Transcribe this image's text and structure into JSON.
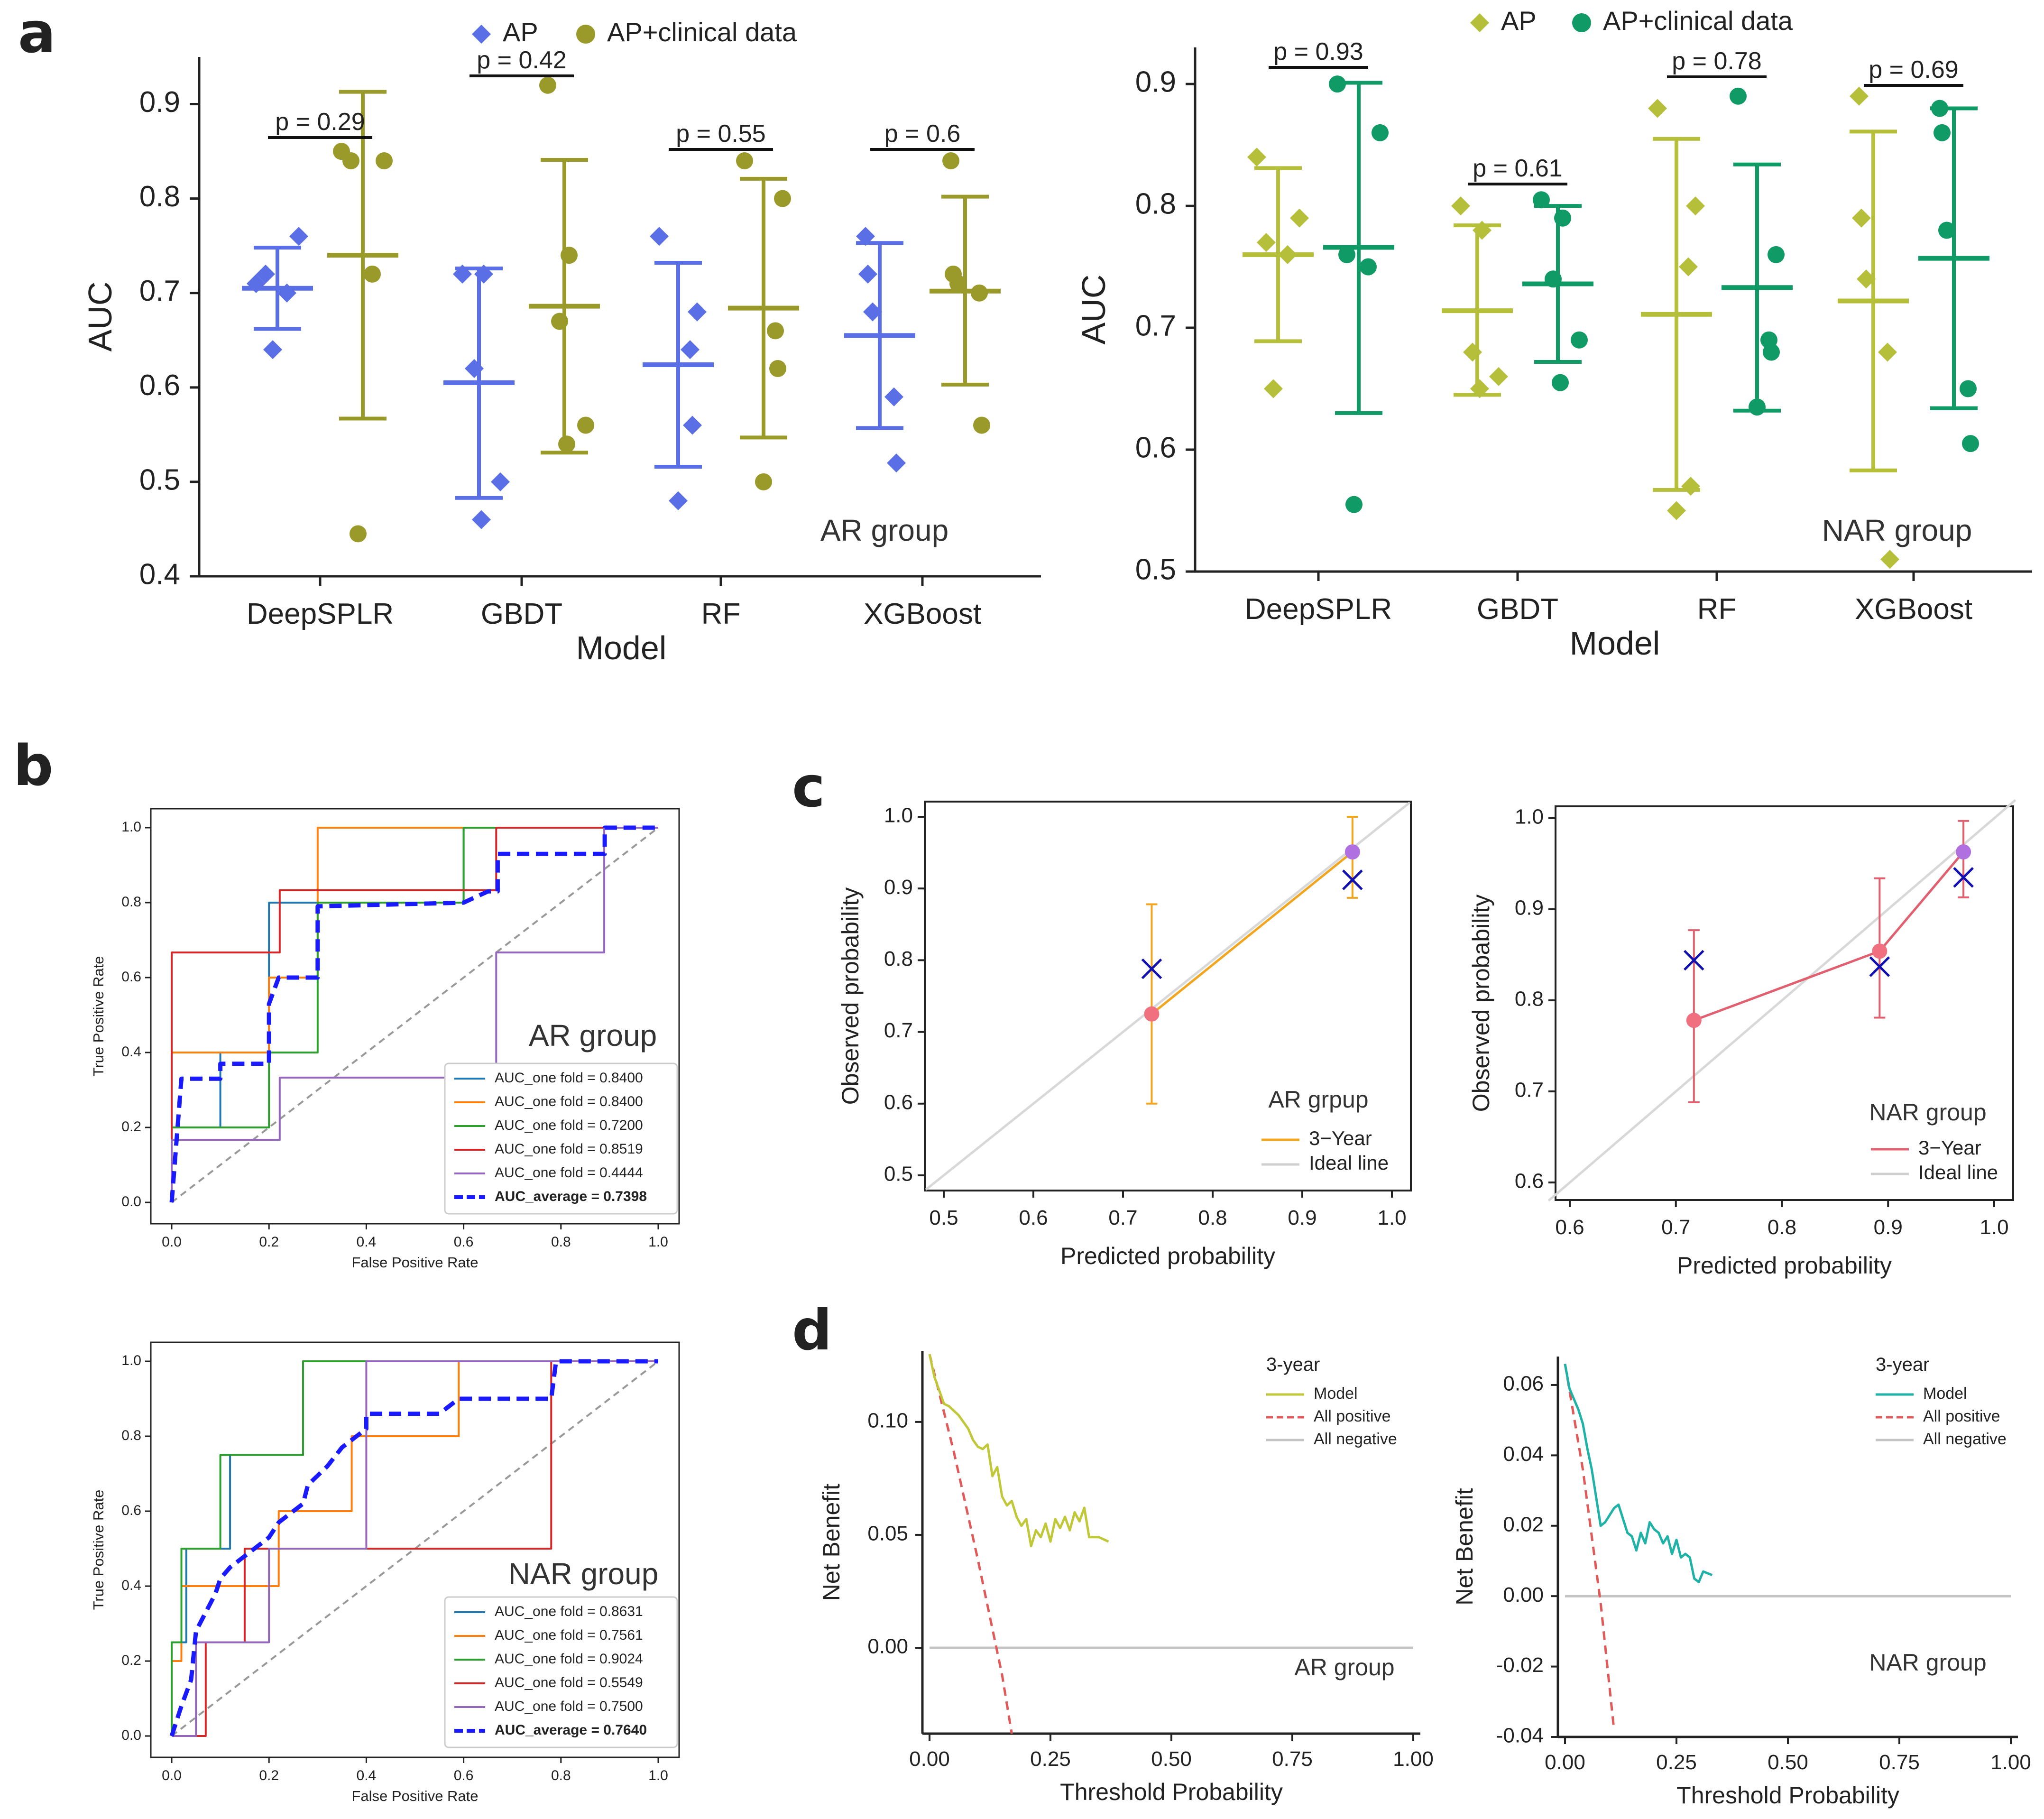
{
  "panel_letters": {
    "a": "a",
    "b": "b",
    "c": "c",
    "d": "d"
  },
  "colors": {
    "ap_ar": "#5a6ee6",
    "apclin_ar": "#9a9a2a",
    "ap_nar": "#b5bf3a",
    "apclin_nar": "#0f9a66",
    "fold1": "#1f77b4",
    "fold2": "#ff7f0e",
    "fold3": "#2ca02c",
    "fold4": "#d62728",
    "fold5": "#9467bd",
    "avg": "#1a1aff",
    "cal_ar_line": "#f2a51f",
    "cal_nar_line": "#e06070",
    "dca_ar_model": "#c0c83a",
    "dca_nar_model": "#20b2a6"
  },
  "chart_data": [
    {
      "id": "a_ar",
      "type": "scatter",
      "xlabel": "Model",
      "ylabel": "AUC",
      "annotation": "AR group",
      "categories": [
        "DeepSPLR",
        "GBDT",
        "RF",
        "XGBoost"
      ],
      "ylim": [
        0.4,
        0.95
      ],
      "yticks": [
        "0.4",
        "0.5",
        "0.6",
        "0.7",
        "0.8",
        "0.9"
      ],
      "legend": [
        "AP",
        "AP+clinical data"
      ],
      "pvalues": [
        "p = 0.29",
        "p = 0.42",
        "p = 0.55",
        "p = 0.6"
      ],
      "series": [
        {
          "name": "AP",
          "marker": "diamond",
          "points": [
            [
              0.71,
              0.76,
              0.72,
              0.7,
              0.64
            ],
            [
              0.72,
              0.72,
              0.62,
              0.5,
              0.46
            ],
            [
              0.76,
              0.68,
              0.64,
              0.56,
              0.48
            ],
            [
              0.76,
              0.72,
              0.68,
              0.59,
              0.52
            ]
          ],
          "mean": [
            0.705,
            0.605,
            0.624,
            0.655
          ],
          "err_low": [
            0.662,
            0.483,
            0.516,
            0.557
          ],
          "err_high": [
            0.748,
            0.726,
            0.732,
            0.753
          ]
        },
        {
          "name": "AP+clinical data",
          "marker": "circle",
          "points": [
            [
              0.85,
              0.84,
              0.84,
              0.72,
              0.445
            ],
            [
              0.92,
              0.74,
              0.67,
              0.56,
              0.54
            ],
            [
              0.84,
              0.8,
              0.66,
              0.62,
              0.5
            ],
            [
              0.84,
              0.72,
              0.71,
              0.7,
              0.56
            ]
          ],
          "mean": [
            0.74,
            0.686,
            0.684,
            0.702
          ],
          "err_low": [
            0.567,
            0.531,
            0.547,
            0.603
          ],
          "err_high": [
            0.913,
            0.841,
            0.821,
            0.802
          ]
        }
      ]
    },
    {
      "id": "a_nar",
      "type": "scatter",
      "xlabel": "Model",
      "ylabel": "AUC",
      "annotation": "NAR group",
      "categories": [
        "DeepSPLR",
        "GBDT",
        "RF",
        "XGBoost"
      ],
      "ylim": [
        0.5,
        0.93
      ],
      "yticks": [
        "0.5",
        "0.6",
        "0.7",
        "0.8",
        "0.9"
      ],
      "legend": [
        "AP",
        "AP+clinical data"
      ],
      "pvalues": [
        "p = 0.93",
        "p = 0.61",
        "p = 0.78",
        "p = 0.69"
      ],
      "series": [
        {
          "name": "AP",
          "marker": "diamond",
          "points": [
            [
              0.84,
              0.79,
              0.77,
              0.76,
              0.65
            ],
            [
              0.8,
              0.78,
              0.68,
              0.66,
              0.65
            ],
            [
              0.88,
              0.8,
              0.75,
              0.57,
              0.55
            ],
            [
              0.89,
              0.79,
              0.74,
              0.68,
              0.51
            ]
          ],
          "mean": [
            0.76,
            0.714,
            0.711,
            0.722
          ],
          "err_low": [
            0.689,
            0.645,
            0.567,
            0.583
          ],
          "err_high": [
            0.831,
            0.784,
            0.855,
            0.861
          ]
        },
        {
          "name": "AP+clinical data",
          "marker": "circle",
          "points": [
            [
              0.9,
              0.86,
              0.76,
              0.75,
              0.555
            ],
            [
              0.805,
              0.79,
              0.74,
              0.69,
              0.655
            ],
            [
              0.89,
              0.76,
              0.69,
              0.68,
              0.635
            ],
            [
              0.88,
              0.86,
              0.78,
              0.65,
              0.605
            ]
          ],
          "mean": [
            0.766,
            0.736,
            0.733,
            0.757
          ],
          "err_low": [
            0.63,
            0.672,
            0.632,
            0.634
          ],
          "err_high": [
            0.901,
            0.8,
            0.834,
            0.88
          ]
        }
      ]
    },
    {
      "id": "b_ar",
      "type": "line",
      "xlabel": "False Positive Rate",
      "ylabel": "True Positive Rate",
      "annotation": "AR group",
      "xticks": [
        "0.0",
        "0.2",
        "0.4",
        "0.6",
        "0.8",
        "1.0"
      ],
      "yticks": [
        "0.0",
        "0.2",
        "0.4",
        "0.6",
        "0.8",
        "1.0"
      ],
      "legend_placement": "bottom-right",
      "series": [
        {
          "name": "AUC_one fold = 0.8400",
          "x": [
            0,
            0,
            0.1,
            0.1,
            0.2,
            0.2,
            0.3,
            0.3,
            0.6,
            0.6,
            1
          ],
          "y": [
            0,
            0.2,
            0.2,
            0.4,
            0.4,
            0.8,
            0.8,
            0.8,
            0.8,
            1,
            1
          ]
        },
        {
          "name": "AUC_one fold = 0.8400",
          "x": [
            0,
            0,
            0.2,
            0.2,
            0.3,
            0.3,
            1
          ],
          "y": [
            0,
            0.4,
            0.4,
            0.6,
            0.6,
            1,
            1
          ]
        },
        {
          "name": "AUC_one fold = 0.7200",
          "x": [
            0,
            0,
            0.2,
            0.2,
            0.3,
            0.3,
            0.6,
            0.6,
            1
          ],
          "y": [
            0,
            0.2,
            0.2,
            0.4,
            0.4,
            0.8,
            0.8,
            1,
            1
          ]
        },
        {
          "name": "AUC_one fold = 0.8519",
          "x": [
            0,
            0,
            0.222,
            0.222,
            0.667,
            0.667,
            0.889,
            0.889,
            1
          ],
          "y": [
            0,
            0.667,
            0.667,
            0.833,
            0.833,
            1,
            1,
            1,
            1
          ]
        },
        {
          "name": "AUC_one fold = 0.4444",
          "x": [
            0,
            0,
            0.222,
            0.222,
            0.667,
            0.667,
            0.889,
            0.889,
            1
          ],
          "y": [
            0,
            0.167,
            0.167,
            0.333,
            0.333,
            0.667,
            0.667,
            1,
            1
          ]
        },
        {
          "name": "AUC_average = 0.7398",
          "x": [
            0,
            0.02,
            0.05,
            0.1,
            0.1,
            0.2,
            0.2,
            0.22,
            0.3,
            0.3,
            0.6,
            0.65,
            0.67,
            0.67,
            0.89,
            0.89,
            1
          ],
          "y": [
            0,
            0.33,
            0.33,
            0.33,
            0.37,
            0.37,
            0.53,
            0.6,
            0.6,
            0.79,
            0.8,
            0.83,
            0.83,
            0.93,
            0.93,
            1,
            1
          ]
        }
      ]
    },
    {
      "id": "b_nar",
      "type": "line",
      "xlabel": "False Positive Rate",
      "ylabel": "True Positive Rate",
      "annotation": "NAR group",
      "xticks": [
        "0.0",
        "0.2",
        "0.4",
        "0.6",
        "0.8",
        "1.0"
      ],
      "yticks": [
        "0.0",
        "0.2",
        "0.4",
        "0.6",
        "0.8",
        "1.0"
      ],
      "legend_placement": "bottom-right",
      "series": [
        {
          "name": "AUC_one fold = 0.8631",
          "x": [
            0,
            0,
            0.03,
            0.03,
            0.07,
            0.07,
            0.12,
            0.12,
            0.27,
            0.27,
            1
          ],
          "y": [
            0,
            0.25,
            0.25,
            0.5,
            0.5,
            0.5,
            0.5,
            0.75,
            0.75,
            1,
            1
          ]
        },
        {
          "name": "AUC_one fold = 0.7561",
          "x": [
            0,
            0,
            0.02,
            0.02,
            0.1,
            0.1,
            0.22,
            0.22,
            0.37,
            0.37,
            0.4,
            0.4,
            0.59,
            0.59,
            1
          ],
          "y": [
            0,
            0.2,
            0.2,
            0.4,
            0.4,
            0.4,
            0.4,
            0.6,
            0.6,
            0.8,
            0.8,
            0.8,
            0.8,
            1,
            1
          ]
        },
        {
          "name": "AUC_one fold = 0.9024",
          "x": [
            0,
            0,
            0.02,
            0.02,
            0.1,
            0.1,
            0.27,
            0.27,
            0.32,
            0.32,
            1
          ],
          "y": [
            0,
            0.25,
            0.25,
            0.5,
            0.5,
            0.75,
            0.75,
            1,
            1,
            1,
            1
          ]
        },
        {
          "name": "AUC_one fold = 0.5549",
          "x": [
            0,
            0.07,
            0.07,
            0.15,
            0.15,
            0.78,
            0.78,
            1
          ],
          "y": [
            0,
            0,
            0.25,
            0.25,
            0.5,
            0.5,
            1,
            1
          ]
        },
        {
          "name": "AUC_one fold = 0.7500",
          "x": [
            0,
            0.05,
            0.05,
            0.2,
            0.2,
            0.4,
            0.4,
            1
          ],
          "y": [
            0,
            0,
            0.25,
            0.25,
            0.5,
            0.5,
            1,
            1
          ]
        },
        {
          "name": "AUC_average = 0.7640",
          "x": [
            0,
            0.02,
            0.04,
            0.05,
            0.07,
            0.09,
            0.1,
            0.12,
            0.15,
            0.18,
            0.2,
            0.22,
            0.27,
            0.28,
            0.32,
            0.35,
            0.4,
            0.4,
            0.55,
            0.59,
            0.78,
            0.79,
            1
          ],
          "y": [
            0,
            0.08,
            0.15,
            0.28,
            0.33,
            0.38,
            0.42,
            0.45,
            0.48,
            0.51,
            0.53,
            0.57,
            0.62,
            0.67,
            0.72,
            0.77,
            0.82,
            0.86,
            0.86,
            0.9,
            0.9,
            1,
            1
          ]
        }
      ]
    },
    {
      "id": "c_ar",
      "type": "line",
      "xlabel": "Predicted probability",
      "ylabel": "Observed probability",
      "annotation": "AR grpup",
      "xlim": [
        0.5,
        1.0
      ],
      "ylim": [
        0.5,
        1.0
      ],
      "xticks": [
        "0.5",
        "0.6",
        "0.7",
        "0.8",
        "0.9",
        "1.0"
      ],
      "yticks": [
        "0.5",
        "0.6",
        "0.7",
        "0.8",
        "0.9",
        "1.0"
      ],
      "legend": [
        "3−Year",
        "Ideal line"
      ],
      "series": [
        {
          "name": "3−Year",
          "x": [
            0.732,
            0.956
          ],
          "y": [
            0.725,
            0.951
          ],
          "err_low": [
            0.6,
            0.887
          ],
          "err_high": [
            0.878,
            1.0
          ]
        },
        {
          "name": "cross",
          "x": [
            0.732,
            0.956
          ],
          "y": [
            0.788,
            0.912
          ]
        }
      ]
    },
    {
      "id": "c_nar",
      "type": "line",
      "xlabel": "Predicted probability",
      "ylabel": "Observed probability",
      "annotation": "NAR group",
      "xlim": [
        0.6,
        1.0
      ],
      "ylim": [
        0.6,
        1.0
      ],
      "xticks": [
        "0.6",
        "0.7",
        "0.8",
        "0.9",
        "1.0"
      ],
      "yticks": [
        "0.6",
        "0.7",
        "0.8",
        "0.9",
        "1.0"
      ],
      "legend": [
        "3−Year",
        "Ideal line"
      ],
      "series": [
        {
          "name": "3−Year",
          "x": [
            0.717,
            0.892,
            0.971
          ],
          "y": [
            0.778,
            0.854,
            0.963
          ],
          "err_low": [
            0.688,
            0.781,
            0.913
          ],
          "err_high": [
            0.877,
            0.934,
            0.997
          ]
        },
        {
          "name": "cross",
          "x": [
            0.717,
            0.892,
            0.971
          ],
          "y": [
            0.844,
            0.837,
            0.935
          ]
        }
      ]
    },
    {
      "id": "d_ar",
      "type": "line",
      "xlabel": "Threshold Probability",
      "ylabel": "Net Benefit",
      "annotation": "AR group",
      "xlim": [
        0.0,
        1.0
      ],
      "ylim": [
        -0.038,
        0.13
      ],
      "xticks": [
        "0.00",
        "0.25",
        "0.50",
        "0.75",
        "1.00"
      ],
      "yticks": [
        "0.00",
        "0.05",
        "0.10"
      ],
      "legend_title": "3-year",
      "legend": [
        "Model",
        "All positive",
        "All negative"
      ],
      "series": [
        {
          "name": "Model",
          "x": [
            0.0,
            0.01,
            0.02,
            0.03,
            0.04,
            0.06,
            0.08,
            0.09,
            0.1,
            0.11,
            0.12,
            0.13,
            0.14,
            0.15,
            0.16,
            0.17,
            0.18,
            0.19,
            0.2,
            0.21,
            0.22,
            0.23,
            0.24,
            0.25,
            0.26,
            0.27,
            0.28,
            0.29,
            0.3,
            0.31,
            0.32,
            0.33,
            0.35,
            0.37
          ],
          "y": [
            0.13,
            0.12,
            0.114,
            0.108,
            0.107,
            0.103,
            0.097,
            0.092,
            0.089,
            0.088,
            0.09,
            0.076,
            0.08,
            0.067,
            0.063,
            0.065,
            0.058,
            0.054,
            0.057,
            0.045,
            0.052,
            0.049,
            0.055,
            0.047,
            0.057,
            0.053,
            0.058,
            0.052,
            0.06,
            0.056,
            0.062,
            0.049,
            0.049,
            0.047
          ]
        },
        {
          "name": "All positive",
          "x": [
            0.0,
            0.05,
            0.1,
            0.15,
            0.17
          ],
          "y": [
            0.13,
            0.087,
            0.039,
            -0.012,
            -0.038
          ]
        },
        {
          "name": "All negative",
          "x": [
            0.0,
            1.0
          ],
          "y": [
            0.0,
            0.0
          ]
        }
      ]
    },
    {
      "id": "d_nar",
      "type": "line",
      "xlabel": "Threshold Probability",
      "ylabel": "Net Benefit",
      "annotation": "NAR group",
      "xlim": [
        0.0,
        1.0
      ],
      "ylim": [
        -0.04,
        0.067
      ],
      "xticks": [
        "0.00",
        "0.25",
        "0.50",
        "0.75",
        "1.00"
      ],
      "yticks": [
        "-0.04",
        "-0.02",
        "0.00",
        "0.02",
        "0.04",
        "0.06"
      ],
      "legend_title": "3-year",
      "legend": [
        "Model",
        "All positive",
        "All negative"
      ],
      "series": [
        {
          "name": "Model",
          "x": [
            0.0,
            0.01,
            0.02,
            0.03,
            0.04,
            0.05,
            0.06,
            0.07,
            0.08,
            0.09,
            0.1,
            0.11,
            0.12,
            0.13,
            0.14,
            0.15,
            0.16,
            0.17,
            0.18,
            0.19,
            0.2,
            0.21,
            0.22,
            0.23,
            0.24,
            0.25,
            0.26,
            0.27,
            0.28,
            0.29,
            0.3,
            0.31,
            0.33
          ],
          "y": [
            0.066,
            0.059,
            0.056,
            0.053,
            0.049,
            0.042,
            0.036,
            0.028,
            0.02,
            0.021,
            0.023,
            0.025,
            0.026,
            0.022,
            0.018,
            0.017,
            0.013,
            0.018,
            0.015,
            0.021,
            0.019,
            0.018,
            0.015,
            0.017,
            0.012,
            0.016,
            0.011,
            0.012,
            0.011,
            0.005,
            0.004,
            0.007,
            0.006
          ]
        },
        {
          "name": "All positive",
          "x": [
            0.0,
            0.04,
            0.08,
            0.11
          ],
          "y": [
            0.066,
            0.036,
            -0.002,
            -0.038
          ]
        },
        {
          "name": "All negative",
          "x": [
            0.0,
            1.0
          ],
          "y": [
            0.0,
            0.0
          ]
        }
      ]
    }
  ]
}
